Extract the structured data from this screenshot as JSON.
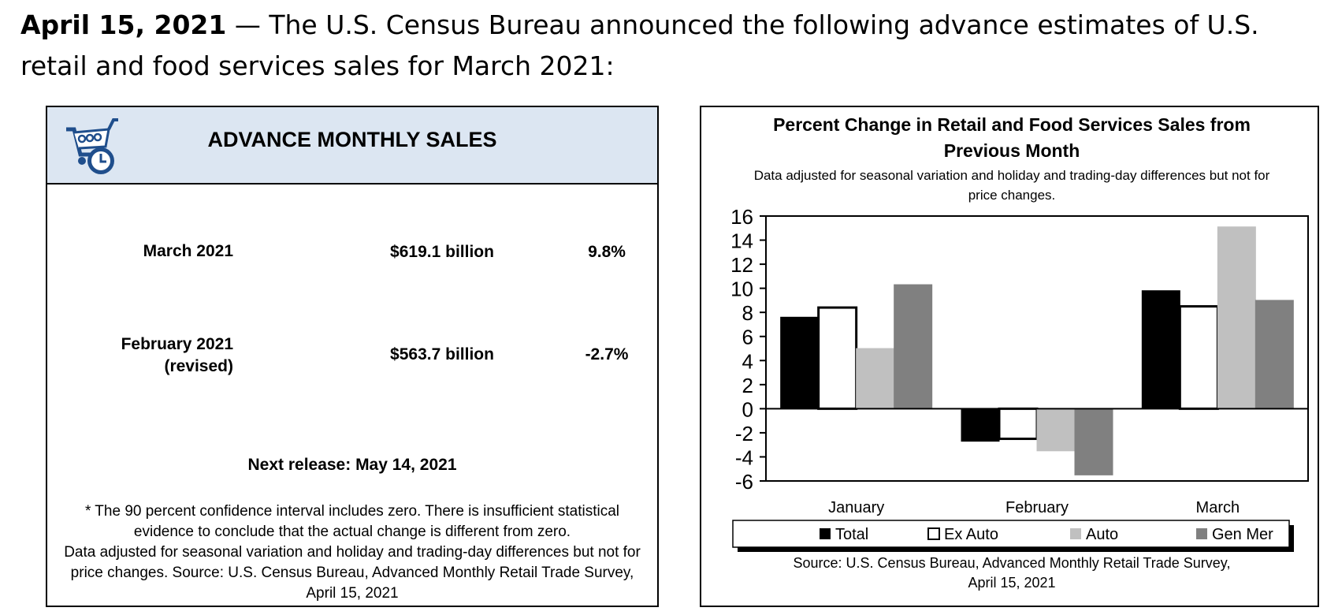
{
  "headline": {
    "date": "April 15, 2021",
    "text": " — The U.S. Census Bureau announced the following advance estimates of U.S. retail and food services sales for March 2021:"
  },
  "panel": {
    "title": "ADVANCE MONTHLY SALES",
    "rows": [
      {
        "label_line1": "March 2021",
        "label_line2": "",
        "amount": "$619.1 billion",
        "pct": "9.8%"
      },
      {
        "label_line1": "February 2021",
        "label_line2": "(revised)",
        "amount": "$563.7 billion",
        "pct": "-2.7%"
      }
    ],
    "next_release": "Next release: May 14, 2021",
    "footnote_1": "* The 90 percent confidence interval includes zero. There is insufficient statistical evidence to conclude that the actual change is different from zero.",
    "footnote_2": "Data adjusted for seasonal variation and holiday and trading-day differences but not for price changes. Source: U.S. Census Bureau, Advanced Monthly Retail Trade Survey, April 15, 2021"
  },
  "chart_data": {
    "type": "bar",
    "title_line1": "Percent Change in Retail and Food Services Sales from",
    "title_line2": "Previous Month",
    "subtitle_line1": "Data adjusted for seasonal variation and holiday and trading-day differences but not for",
    "subtitle_line2": "price changes.",
    "categories": [
      "January",
      "February",
      "March"
    ],
    "series": [
      {
        "name": "Total",
        "color": "#000000",
        "values": [
          7.6,
          -2.7,
          9.8
        ]
      },
      {
        "name": "Ex Auto",
        "color": "#ffffff",
        "values": [
          8.4,
          -2.5,
          8.5
        ]
      },
      {
        "name": "Auto",
        "color": "#c0c0c0",
        "values": [
          5.0,
          -3.5,
          15.1
        ]
      },
      {
        "name": "Gen Mer",
        "color": "#808080",
        "values": [
          10.3,
          -5.5,
          9.0
        ]
      }
    ],
    "yticks": [
      "16",
      "14",
      "12",
      "10",
      "8",
      "6",
      "4",
      "2",
      "0",
      "-2",
      "-4",
      "-6"
    ],
    "ylim": [
      -6,
      16
    ],
    "source_line1": "Source: U.S. Census Bureau, Advanced Monthly Retail Trade Survey,",
    "source_line2": "April 15, 2021"
  }
}
